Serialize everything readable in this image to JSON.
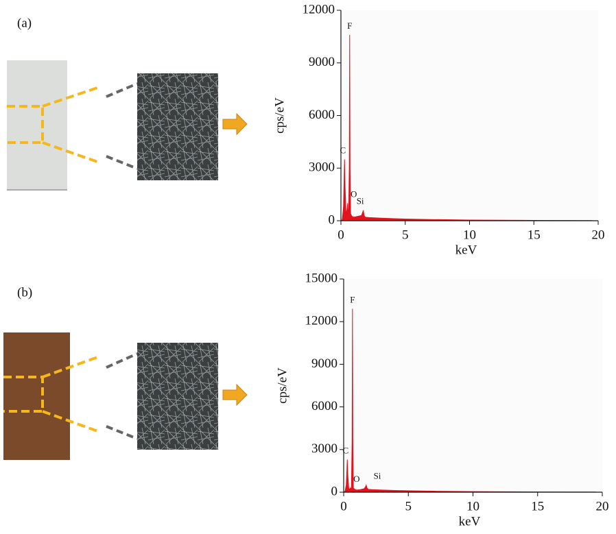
{
  "chart_data": [
    {
      "type": "area",
      "label": "(a)",
      "xlabel": "keV",
      "ylabel": "cps/eV",
      "color": "#e0141e",
      "xlim": [
        0,
        20
      ],
      "xticks": [
        0,
        5,
        10,
        15,
        20
      ],
      "ylim": [
        0,
        12000
      ],
      "yticks": [
        0,
        3000,
        6000,
        9000,
        12000
      ],
      "x": [
        0,
        0.1,
        0.2,
        0.25,
        0.28,
        0.32,
        0.4,
        0.5,
        0.52,
        0.55,
        0.6,
        0.65,
        0.68,
        0.71,
        0.75,
        0.85,
        1.0,
        1.3,
        1.6,
        1.7,
        1.74,
        1.8,
        1.9,
        2.2,
        3,
        4,
        5,
        7,
        10,
        15,
        19.5
      ],
      "values": [
        0,
        50,
        800,
        2500,
        3500,
        2000,
        300,
        800,
        1000,
        600,
        400,
        3000,
        10600,
        3000,
        400,
        250,
        200,
        250,
        300,
        500,
        600,
        300,
        200,
        180,
        150,
        120,
        100,
        70,
        40,
        20,
        10
      ],
      "annotations": [
        {
          "text": "F",
          "x": 0.68,
          "y": 10600
        },
        {
          "text": "C",
          "x": 0.15,
          "y": 3500
        },
        {
          "text": "O",
          "x": 1.0,
          "y": 1000
        },
        {
          "text": "Si",
          "x": 1.5,
          "y": 600
        }
      ]
    },
    {
      "type": "area",
      "label": "(b)",
      "xlabel": "keV",
      "ylabel": "cps/eV",
      "color": "#e0141e",
      "xlim": [
        0,
        20
      ],
      "xticks": [
        0,
        5,
        10,
        15,
        20
      ],
      "ylim": [
        0,
        15000
      ],
      "yticks": [
        0,
        3000,
        6000,
        9000,
        12000,
        15000
      ],
      "x": [
        0,
        0.1,
        0.2,
        0.25,
        0.28,
        0.32,
        0.4,
        0.5,
        0.52,
        0.55,
        0.6,
        0.65,
        0.68,
        0.71,
        0.75,
        0.85,
        1.0,
        1.3,
        1.6,
        1.7,
        1.74,
        1.8,
        1.9,
        2.2,
        3,
        4,
        5,
        7,
        10,
        15,
        19.5
      ],
      "values": [
        0,
        50,
        500,
        1600,
        2300,
        1200,
        200,
        250,
        300,
        200,
        300,
        3500,
        12900,
        3500,
        300,
        200,
        150,
        180,
        250,
        400,
        500,
        300,
        200,
        180,
        150,
        120,
        100,
        70,
        40,
        20,
        10
      ],
      "annotations": [
        {
          "text": "F",
          "x": 0.68,
          "y": 12900
        },
        {
          "text": "C",
          "x": 0.15,
          "y": 2300
        },
        {
          "text": "O",
          "x": 1.0,
          "y": 300
        },
        {
          "text": "Si",
          "x": 2.6,
          "y": 500
        }
      ]
    }
  ]
}
